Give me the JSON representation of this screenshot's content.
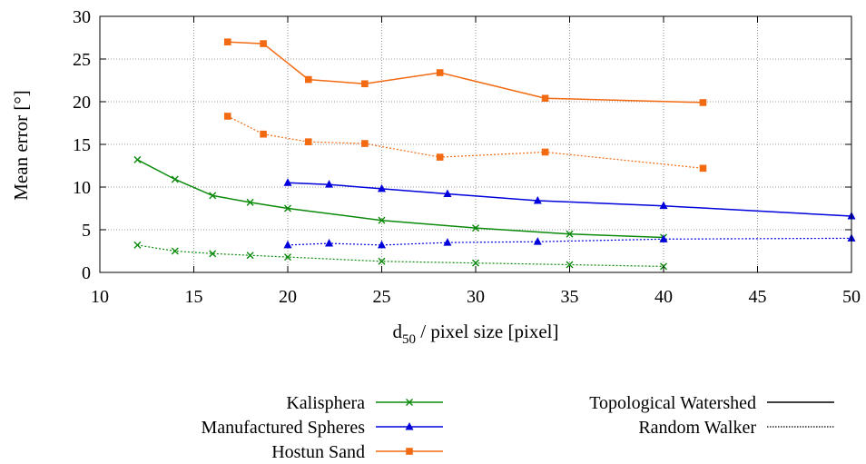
{
  "chart_data": {
    "type": "line",
    "title": "",
    "xlabel": "d50 / pixel size [pixel]",
    "xlabel_main": "d",
    "xlabel_sub": "50",
    "xlabel_rest": " / pixel size [pixel]",
    "ylabel": "Mean error [°]",
    "xlim": [
      10,
      50
    ],
    "ylim": [
      0,
      30
    ],
    "xticks": [
      10,
      15,
      20,
      25,
      30,
      35,
      40,
      45,
      50
    ],
    "yticks": [
      0,
      5,
      10,
      15,
      20,
      25,
      30
    ],
    "grid": true,
    "legend_placement": "bottom",
    "series": [
      {
        "material": "Kalisphera",
        "method": "Topological Watershed",
        "color": "#0b8a0b",
        "marker": "x",
        "line": "solid",
        "x": [
          12,
          14,
          16,
          18,
          20,
          25,
          30,
          35,
          40
        ],
        "y": [
          13.2,
          10.9,
          9.0,
          8.2,
          7.5,
          6.1,
          5.2,
          4.5,
          4.1
        ]
      },
      {
        "material": "Kalisphera",
        "method": "Random Walker",
        "color": "#0b8a0b",
        "marker": "x",
        "line": "dotted",
        "x": [
          12,
          14,
          16,
          18,
          20,
          25,
          30,
          35,
          40
        ],
        "y": [
          3.2,
          2.5,
          2.2,
          2.0,
          1.8,
          1.3,
          1.1,
          0.9,
          0.7
        ]
      },
      {
        "material": "Manufactured Spheres",
        "method": "Topological Watershed",
        "color": "#0000dd",
        "marker": "triangle",
        "line": "solid",
        "x": [
          20,
          22.2,
          25,
          28.5,
          33.3,
          40,
          50
        ],
        "y": [
          10.5,
          10.3,
          9.8,
          9.2,
          8.4,
          7.8,
          6.6
        ]
      },
      {
        "material": "Manufactured Spheres",
        "method": "Random Walker",
        "color": "#0000dd",
        "marker": "triangle",
        "line": "dotted",
        "x": [
          20,
          22.2,
          25,
          28.5,
          33.3,
          40,
          50
        ],
        "y": [
          3.2,
          3.4,
          3.2,
          3.5,
          3.6,
          3.9,
          4.0
        ]
      },
      {
        "material": "Hostun Sand",
        "method": "Topological Watershed",
        "color": "#f26a12",
        "marker": "square",
        "line": "solid",
        "x": [
          16.8,
          18.7,
          21.1,
          24.1,
          28.1,
          33.7,
          42.1
        ],
        "y": [
          27.0,
          26.8,
          22.6,
          22.1,
          23.4,
          20.4,
          19.9
        ]
      },
      {
        "material": "Hostun Sand",
        "method": "Random Walker",
        "color": "#f26a12",
        "marker": "square",
        "line": "dotted",
        "x": [
          16.8,
          18.7,
          21.1,
          24.1,
          28.1,
          33.7,
          42.1
        ],
        "y": [
          18.3,
          16.2,
          15.3,
          15.1,
          13.5,
          14.1,
          12.2
        ]
      }
    ],
    "legend": {
      "materials": [
        {
          "label": "Kalisphera",
          "color": "#0b8a0b",
          "marker": "x"
        },
        {
          "label": "Manufactured Spheres",
          "color": "#0000dd",
          "marker": "triangle"
        },
        {
          "label": "Hostun Sand",
          "color": "#f26a12",
          "marker": "square"
        }
      ],
      "methods": [
        {
          "label": "Topological Watershed",
          "line": "solid"
        },
        {
          "label": "Random Walker",
          "line": "dotted"
        }
      ]
    }
  }
}
